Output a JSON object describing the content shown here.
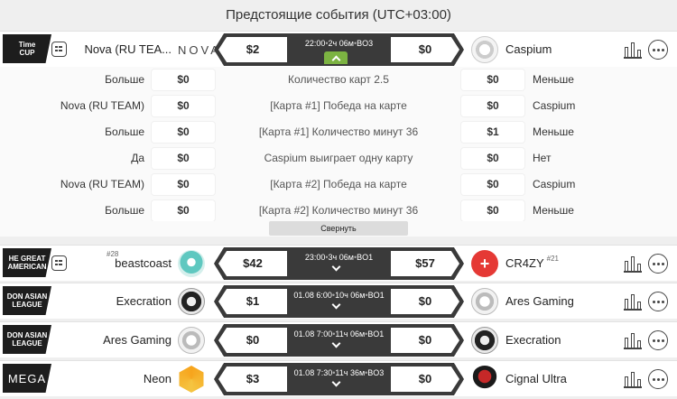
{
  "header": {
    "title": "Предстоящие события (UTC+03:00)"
  },
  "expanded_match": {
    "tournament": "Time\nCUP",
    "team1": {
      "name": "Nova (RU TEA...",
      "logo_text": "NOVA"
    },
    "team2": {
      "name": "Caspium"
    },
    "bet_left": "$2",
    "bet_right": "$0",
    "time": "22:00",
    "countdown": "2ч 06м",
    "format": "BO3",
    "markets": [
      {
        "left_label": "Больше",
        "left_odd": "$0",
        "center": "Количество карт 2.5",
        "right_odd": "$0",
        "right_label": "Меньше"
      },
      {
        "left_label": "Nova (RU TEAM)",
        "left_odd": "$0",
        "center": "[Карта #1] Победа на карте",
        "right_odd": "$0",
        "right_label": "Caspium"
      },
      {
        "left_label": "Больше",
        "left_odd": "$0",
        "center": "[Карта #1] Количество минут 36",
        "right_odd": "$1",
        "right_label": "Меньше"
      },
      {
        "left_label": "Да",
        "left_odd": "$0",
        "center": "Caspium выиграет одну карту",
        "right_odd": "$0",
        "right_label": "Нет"
      },
      {
        "left_label": "Nova (RU TEAM)",
        "left_odd": "$0",
        "center": "[Карта #2] Победа на карте",
        "right_odd": "$0",
        "right_label": "Caspium"
      },
      {
        "left_label": "Больше",
        "left_odd": "$0",
        "center": "[Карта #2] Количество минут 36",
        "right_odd": "$0",
        "right_label": "Меньше"
      }
    ],
    "collapse_label": "Свернуть"
  },
  "matches": [
    {
      "tournament": "HE GREAT\nAMERICAN",
      "team1": "beastcoast",
      "team1_rank": "#28",
      "team2": "CR4ZY",
      "team2_rank": "#21",
      "bet_left": "$42",
      "bet_right": "$57",
      "date": "",
      "time": "23:00",
      "countdown": "3ч 06м",
      "format": "BO1"
    },
    {
      "tournament": "DON ASIAN\nLEAGUE",
      "team1": "Execration",
      "team1_rank": "",
      "team2": "Ares Gaming",
      "team2_rank": "",
      "bet_left": "$1",
      "bet_right": "$0",
      "date": "01.08",
      "time": "6:00",
      "countdown": "10ч 06м",
      "format": "BO1"
    },
    {
      "tournament": "DON ASIAN\nLEAGUE",
      "team1": "Ares Gaming",
      "team1_rank": "",
      "team2": "Execration",
      "team2_rank": "",
      "bet_left": "$0",
      "bet_right": "$0",
      "date": "01.08",
      "time": "7:00",
      "countdown": "11ч 06м",
      "format": "BO1"
    },
    {
      "tournament": "MEGA",
      "team1": "Neon",
      "team1_rank": "",
      "team2": "Cignal Ultra",
      "team2_rank": "",
      "bet_left": "$3",
      "bet_right": "$0",
      "date": "01.08",
      "time": "7:30",
      "countdown": "11ч 36м",
      "format": "BO3"
    }
  ],
  "icons": {
    "info": "info-card-icon",
    "stats": "bar-chart-icon",
    "more": "more-dots-icon",
    "expand": "chevron-down-icon",
    "collapse": "chevron-up-icon"
  },
  "colors": {
    "accent": "#7cb342",
    "odds_frame": "#3a3a3a",
    "crazy_red": "#e53935"
  }
}
